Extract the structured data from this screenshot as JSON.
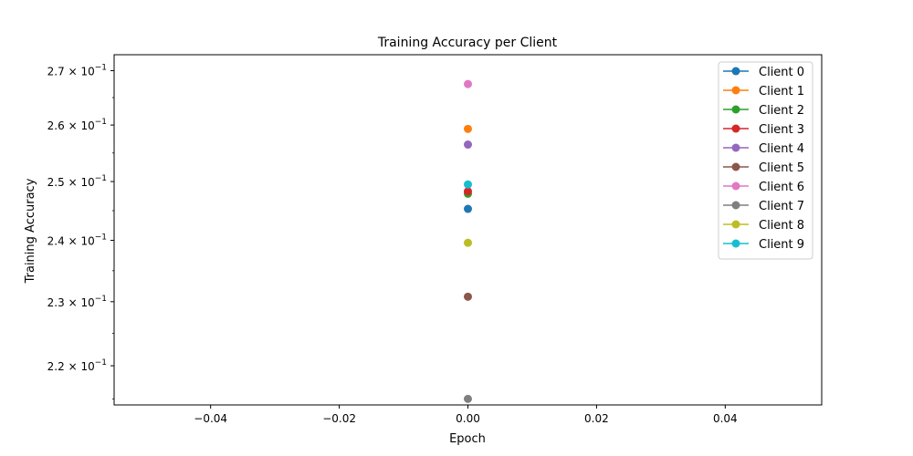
{
  "chart_data": {
    "type": "scatter",
    "title": "Training Accuracy per Client",
    "xlabel": "Epoch",
    "ylabel": "Training Accuracy",
    "x_scale": "linear",
    "y_scale": "log",
    "xlim": [
      -0.055,
      0.055
    ],
    "ylim": [
      0.2141,
      0.273
    ],
    "x_ticks": [
      -0.04,
      -0.02,
      0.0,
      0.02,
      0.04
    ],
    "x_tick_labels": [
      "−0.04",
      "−0.02",
      "0.00",
      "0.02",
      "0.04"
    ],
    "y_ticks": [
      0.22,
      0.23,
      0.24,
      0.25,
      0.26,
      0.27
    ],
    "y_tick_labels": [
      {
        "mantissa": "2.2",
        "base": "10",
        "exp": "−1"
      },
      {
        "mantissa": "2.3",
        "base": "10",
        "exp": "−1"
      },
      {
        "mantissa": "2.4",
        "base": "10",
        "exp": "−1"
      },
      {
        "mantissa": "2.5",
        "base": "10",
        "exp": "−1"
      },
      {
        "mantissa": "2.6",
        "base": "10",
        "exp": "−1"
      },
      {
        "mantissa": "2.7",
        "base": "10",
        "exp": "−1"
      }
    ],
    "grid": false,
    "legend_position": "top-right",
    "series": [
      {
        "name": "Client 0",
        "color": "#1f77b4",
        "x": [
          0
        ],
        "y": [
          0.2453
        ]
      },
      {
        "name": "Client 1",
        "color": "#ff7f0e",
        "x": [
          0
        ],
        "y": [
          0.2593
        ]
      },
      {
        "name": "Client 2",
        "color": "#2ca02c",
        "x": [
          0
        ],
        "y": [
          0.2479
        ]
      },
      {
        "name": "Client 3",
        "color": "#d62728",
        "x": [
          0
        ],
        "y": [
          0.2483
        ]
      },
      {
        "name": "Client 4",
        "color": "#9467bd",
        "x": [
          0
        ],
        "y": [
          0.2565
        ]
      },
      {
        "name": "Client 5",
        "color": "#8c564b",
        "x": [
          0
        ],
        "y": [
          0.2308
        ]
      },
      {
        "name": "Client 6",
        "color": "#e377c2",
        "x": [
          0
        ],
        "y": [
          0.2675
        ]
      },
      {
        "name": "Client 7",
        "color": "#7f7f7f",
        "x": [
          0
        ],
        "y": [
          0.215
        ]
      },
      {
        "name": "Client 8",
        "color": "#bcbd22",
        "x": [
          0
        ],
        "y": [
          0.2396
        ]
      },
      {
        "name": "Client 9",
        "color": "#17becf",
        "x": [
          0
        ],
        "y": [
          0.2495
        ]
      }
    ]
  }
}
